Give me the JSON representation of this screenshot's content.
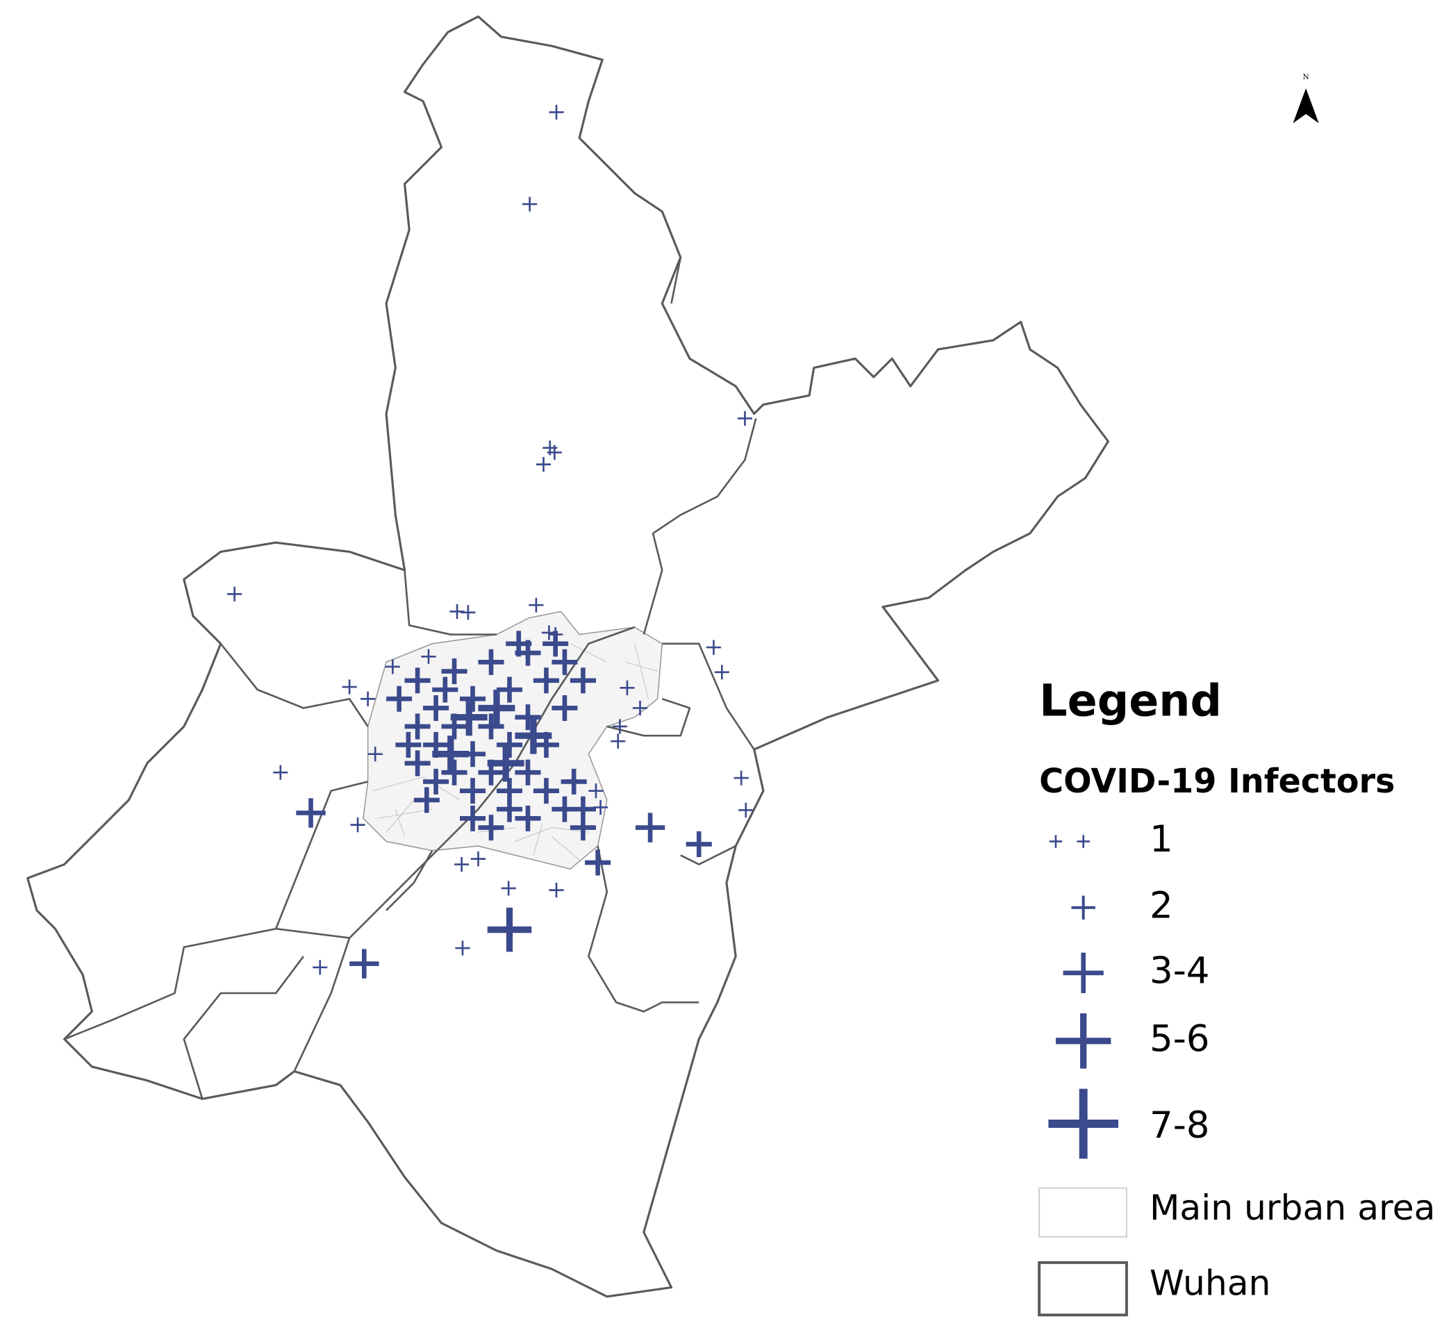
{
  "north_arrow": {
    "label": "N"
  },
  "legend": {
    "title": "Legend",
    "subtitle": "COVID-19 Infectors",
    "symbols": [
      {
        "label": "1"
      },
      {
        "label": "2"
      },
      {
        "label": "3-4"
      },
      {
        "label": "5-6"
      },
      {
        "label": "7-8"
      }
    ],
    "areas": [
      {
        "label": "Main urban area"
      },
      {
        "label": "Wuhan"
      }
    ]
  }
}
